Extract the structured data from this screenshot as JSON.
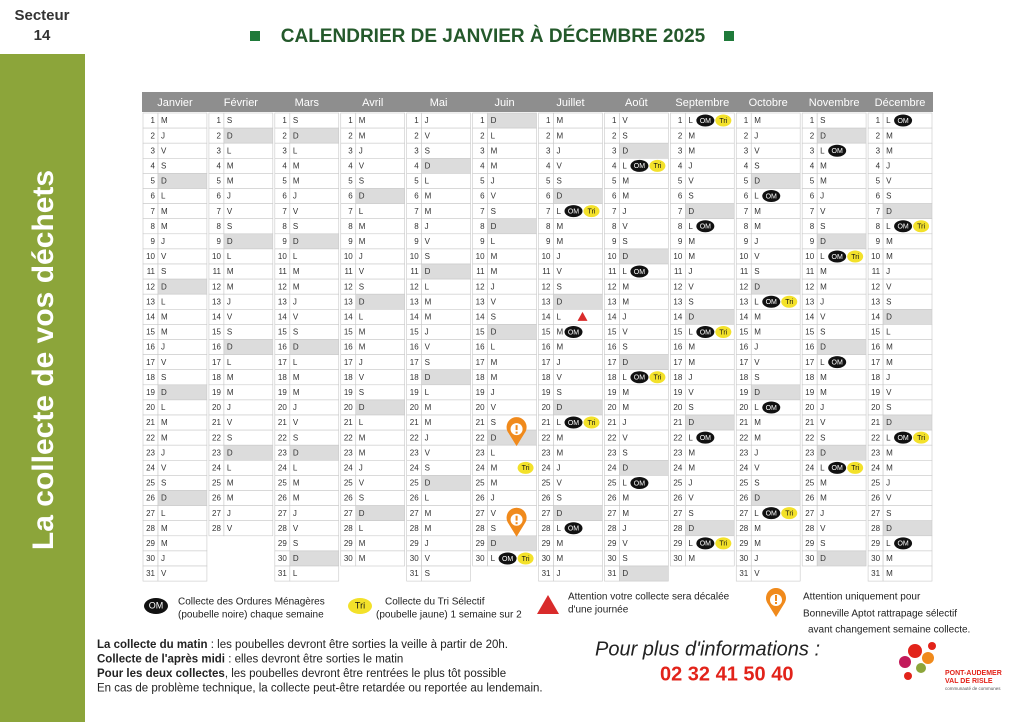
{
  "sector": {
    "label": "Secteur",
    "number": "14"
  },
  "side_title": "La collecte de vos déchets",
  "title": "CALENDRIER DE JANVIER À DÉCEMBRE 2025",
  "shaded_weekday": "D",
  "months": [
    {
      "name": "Janvier",
      "numbers": [
        1,
        2,
        3,
        4,
        5,
        6,
        7,
        8,
        9,
        10,
        11,
        12,
        13,
        14,
        15,
        16,
        17,
        18,
        19,
        20,
        21,
        22,
        23,
        24,
        25,
        26,
        27,
        28,
        29,
        30,
        31
      ],
      "weekdays": [
        "M",
        "J",
        "V",
        "S",
        "D",
        "L",
        "M",
        "M",
        "J",
        "V",
        "S",
        "D",
        "L",
        "M",
        "M",
        "J",
        "V",
        "S",
        "D",
        "L",
        "M",
        "M",
        "J",
        "V",
        "S",
        "D",
        "L",
        "M",
        "M",
        "J",
        "V"
      ],
      "events": []
    },
    {
      "name": "Février",
      "numbers": [
        1,
        2,
        3,
        4,
        5,
        6,
        7,
        8,
        9,
        10,
        11,
        12,
        13,
        14,
        15,
        16,
        17,
        18,
        19,
        20,
        21,
        22,
        23,
        24,
        25,
        26,
        27,
        28
      ],
      "weekdays": [
        "S",
        "D",
        "L",
        "M",
        "M",
        "J",
        "V",
        "S",
        "D",
        "L",
        "M",
        "M",
        "J",
        "V",
        "S",
        "D",
        "L",
        "M",
        "M",
        "J",
        "V",
        "S",
        "D",
        "L",
        "M",
        "M",
        "J",
        "V"
      ],
      "events": []
    },
    {
      "name": "Mars",
      "numbers": [
        1,
        2,
        3,
        4,
        5,
        6,
        7,
        8,
        9,
        10,
        11,
        12,
        13,
        14,
        15,
        16,
        17,
        18,
        19,
        20,
        21,
        22,
        23,
        24,
        25,
        26,
        27,
        28,
        29,
        30,
        31
      ],
      "weekdays": [
        "S",
        "D",
        "L",
        "M",
        "M",
        "J",
        "V",
        "S",
        "D",
        "L",
        "M",
        "M",
        "J",
        "V",
        "S",
        "D",
        "L",
        "M",
        "M",
        "J",
        "V",
        "S",
        "D",
        "L",
        "M",
        "M",
        "J",
        "V",
        "S",
        "D",
        "L"
      ],
      "events": []
    },
    {
      "name": "Avril",
      "numbers": [
        1,
        2,
        3,
        4,
        5,
        6,
        7,
        8,
        9,
        10,
        11,
        12,
        13,
        14,
        15,
        16,
        17,
        18,
        19,
        20,
        21,
        22,
        23,
        24,
        25,
        26,
        27,
        28,
        29,
        30
      ],
      "weekdays": [
        "M",
        "M",
        "J",
        "V",
        "S",
        "D",
        "L",
        "M",
        "M",
        "J",
        "V",
        "S",
        "D",
        "L",
        "M",
        "M",
        "J",
        "V",
        "S",
        "D",
        "L",
        "M",
        "M",
        "J",
        "V",
        "S",
        "D",
        "L",
        "M",
        "M"
      ],
      "events": []
    },
    {
      "name": "Mai",
      "numbers": [
        1,
        2,
        3,
        4,
        5,
        6,
        7,
        8,
        9,
        10,
        11,
        12,
        13,
        14,
        15,
        16,
        17,
        18,
        19,
        20,
        21,
        22,
        23,
        24,
        25,
        26,
        27,
        28,
        29,
        30,
        31
      ],
      "weekdays": [
        "J",
        "V",
        "S",
        "D",
        "L",
        "M",
        "M",
        "J",
        "V",
        "S",
        "D",
        "L",
        "M",
        "M",
        "J",
        "V",
        "S",
        "D",
        "L",
        "M",
        "M",
        "J",
        "V",
        "S",
        "D",
        "L",
        "M",
        "M",
        "J",
        "V",
        "S"
      ],
      "events": []
    },
    {
      "name": "Juin",
      "numbers": [
        1,
        2,
        3,
        4,
        5,
        6,
        7,
        8,
        9,
        10,
        11,
        12,
        13,
        14,
        15,
        16,
        17,
        18,
        19,
        20,
        21,
        22,
        23,
        24,
        25,
        26,
        27,
        28,
        29,
        30
      ],
      "weekdays": [
        "D",
        "L",
        "M",
        "M",
        "J",
        "V",
        "S",
        "D",
        "L",
        "M",
        "M",
        "J",
        "V",
        "S",
        "D",
        "L",
        "M",
        "M",
        "J",
        "V",
        "S",
        "D",
        "L",
        "M",
        "M",
        "J",
        "V",
        "S",
        "D",
        "L"
      ],
      "events": [
        {
          "day": 24,
          "tri": "Tri"
        },
        {
          "day": 30,
          "om": "OM",
          "tri": "Tri"
        }
      ],
      "pins": [
        22,
        28
      ]
    },
    {
      "name": "Juillet",
      "numbers": [
        1,
        2,
        3,
        4,
        5,
        6,
        7,
        8,
        9,
        10,
        11,
        12,
        13,
        14,
        15,
        16,
        17,
        18,
        19,
        20,
        21,
        22,
        23,
        24,
        25,
        26,
        27,
        28,
        29,
        30,
        31
      ],
      "weekdays": [
        "M",
        "M",
        "J",
        "V",
        "S",
        "D",
        "L",
        "M",
        "M",
        "J",
        "V",
        "S",
        "D",
        "L",
        "M",
        "M",
        "J",
        "V",
        "S",
        "D",
        "L",
        "M",
        "M",
        "J",
        "V",
        "S",
        "D",
        "L",
        "M",
        "M",
        "J"
      ],
      "events": [
        {
          "day": 7,
          "om": "OM",
          "tri": "Tri"
        },
        {
          "day": 15,
          "om": "OM"
        },
        {
          "day": 21,
          "om": "OM",
          "tri": "Tri"
        },
        {
          "day": 28,
          "om": "OM"
        }
      ],
      "alerts": [
        14
      ]
    },
    {
      "name": "Août",
      "numbers": [
        1,
        2,
        3,
        4,
        5,
        6,
        7,
        8,
        9,
        10,
        11,
        12,
        13,
        14,
        15,
        16,
        17,
        18,
        19,
        20,
        21,
        22,
        23,
        24,
        25,
        26,
        27,
        28,
        29,
        30,
        31
      ],
      "weekdays": [
        "V",
        "S",
        "D",
        "L",
        "M",
        "M",
        "J",
        "V",
        "S",
        "D",
        "L",
        "M",
        "M",
        "J",
        "V",
        "S",
        "D",
        "L",
        "M",
        "M",
        "J",
        "V",
        "S",
        "D",
        "L",
        "M",
        "M",
        "J",
        "V",
        "S",
        "D"
      ],
      "events": [
        {
          "day": 4,
          "om": "OM",
          "tri": "Tri"
        },
        {
          "day": 11,
          "om": "OM"
        },
        {
          "day": 18,
          "om": "OM",
          "tri": "Tri"
        },
        {
          "day": 25,
          "om": "OM"
        }
      ]
    },
    {
      "name": "Septembre",
      "numbers": [
        1,
        2,
        3,
        4,
        5,
        6,
        7,
        8,
        9,
        10,
        11,
        12,
        13,
        14,
        15,
        16,
        17,
        18,
        19,
        20,
        21,
        22,
        23,
        24,
        25,
        26,
        27,
        28,
        29,
        30
      ],
      "weekdays": [
        "L",
        "M",
        "M",
        "J",
        "V",
        "S",
        "D",
        "L",
        "M",
        "M",
        "J",
        "V",
        "S",
        "D",
        "L",
        "M",
        "M",
        "J",
        "V",
        "S",
        "D",
        "L",
        "M",
        "M",
        "J",
        "V",
        "S",
        "D",
        "L",
        "M"
      ],
      "events": [
        {
          "day": 1,
          "om": "OM",
          "tri": "Tri"
        },
        {
          "day": 8,
          "om": "OM"
        },
        {
          "day": 15,
          "om": "OM",
          "tri": "Tri"
        },
        {
          "day": 22,
          "om": "OM"
        },
        {
          "day": 29,
          "om": "OM",
          "tri": "Tri"
        }
      ]
    },
    {
      "name": "Octobre",
      "numbers": [
        1,
        2,
        3,
        4,
        5,
        6,
        7,
        8,
        9,
        10,
        11,
        12,
        13,
        14,
        15,
        16,
        17,
        18,
        19,
        20,
        21,
        22,
        23,
        24,
        25,
        26,
        27,
        28,
        29,
        30,
        31
      ],
      "weekdays": [
        "M",
        "J",
        "V",
        "S",
        "D",
        "L",
        "M",
        "M",
        "J",
        "V",
        "S",
        "D",
        "L",
        "M",
        "M",
        "J",
        "V",
        "S",
        "D",
        "L",
        "M",
        "M",
        "J",
        "V",
        "S",
        "D",
        "L",
        "M",
        "M",
        "J",
        "V"
      ],
      "events": [
        {
          "day": 6,
          "om": "OM"
        },
        {
          "day": 13,
          "om": "OM",
          "tri": "Tri"
        },
        {
          "day": 20,
          "om": "OM"
        },
        {
          "day": 27,
          "om": "OM",
          "tri": "Tri"
        }
      ]
    },
    {
      "name": "Novembre",
      "numbers": [
        1,
        2,
        3,
        4,
        5,
        6,
        7,
        8,
        9,
        10,
        11,
        12,
        13,
        14,
        15,
        16,
        17,
        18,
        19,
        20,
        21,
        22,
        23,
        24,
        25,
        26,
        27,
        28,
        29,
        30
      ],
      "weekdays": [
        "S",
        "D",
        "L",
        "M",
        "M",
        "J",
        "V",
        "S",
        "D",
        "L",
        "M",
        "M",
        "J",
        "V",
        "S",
        "D",
        "L",
        "M",
        "M",
        "J",
        "V",
        "S",
        "D",
        "L",
        "M",
        "M",
        "J",
        "V",
        "S",
        "D"
      ],
      "events": [
        {
          "day": 3,
          "om": "OM"
        },
        {
          "day": 10,
          "om": "OM",
          "tri": "Tri"
        },
        {
          "day": 17,
          "om": "OM"
        },
        {
          "day": 24,
          "om": "OM",
          "tri": "Tri"
        }
      ]
    },
    {
      "name": "Décembre",
      "numbers": [
        1,
        2,
        3,
        4,
        5,
        6,
        7,
        8,
        9,
        10,
        11,
        12,
        13,
        14,
        15,
        16,
        17,
        18,
        19,
        20,
        21,
        22,
        23,
        24,
        25,
        26,
        27,
        28,
        29,
        30,
        31
      ],
      "weekdays": [
        "L",
        "M",
        "M",
        "J",
        "V",
        "S",
        "D",
        "L",
        "M",
        "M",
        "J",
        "V",
        "S",
        "D",
        "L",
        "M",
        "M",
        "J",
        "V",
        "S",
        "D",
        "L",
        "M",
        "M",
        "J",
        "V",
        "S",
        "D",
        "L",
        "M",
        "M"
      ],
      "events": [
        {
          "day": 1,
          "om": "OM"
        },
        {
          "day": 8,
          "om": "OM",
          "tri": "Tri"
        },
        {
          "day": 22,
          "om": "OM",
          "tri": "Tri"
        },
        {
          "day": 29,
          "om": "OM"
        }
      ]
    }
  ],
  "legend": {
    "om": {
      "badge": "OM",
      "lines": [
        "Collecte des Ordures Ménagères",
        "(poubelle noire) chaque semaine"
      ]
    },
    "tri": {
      "badge": "Tri",
      "lines": [
        "Collecte du Tri Sélectif",
        "(poubelle jaune) 1 semaine sur 2"
      ]
    },
    "alert": {
      "lines": [
        "Attention votre collecte sera décalée",
        "d'une journée"
      ]
    },
    "pin": {
      "lines": [
        "Attention uniquement pour",
        "Bonneville Aptot rattrapage sélectif",
        "avant changement semaine collecte."
      ]
    }
  },
  "notes": [
    {
      "bold": "La collecte du matin",
      "text": " : les poubelles devront être sorties la veille à partir de 20h."
    },
    {
      "bold": "Collecte de l'après midi",
      "text": " : elles devront être sorties le matin"
    },
    {
      "bold": "Pour les deux collectes",
      "text": ", les poubelles devront être rentrées le plus tôt possible"
    },
    {
      "text": "En cas de problème technique, la collecte peut-être retardée ou reportée au lendemain."
    }
  ],
  "info": {
    "label": "Pour plus d'informations :",
    "phone": "02 32 41 50 40"
  },
  "logo": {
    "line1": "PONT-AUDEMER",
    "line2": "VAL DE RISLE",
    "line3": "communauté de communes"
  }
}
